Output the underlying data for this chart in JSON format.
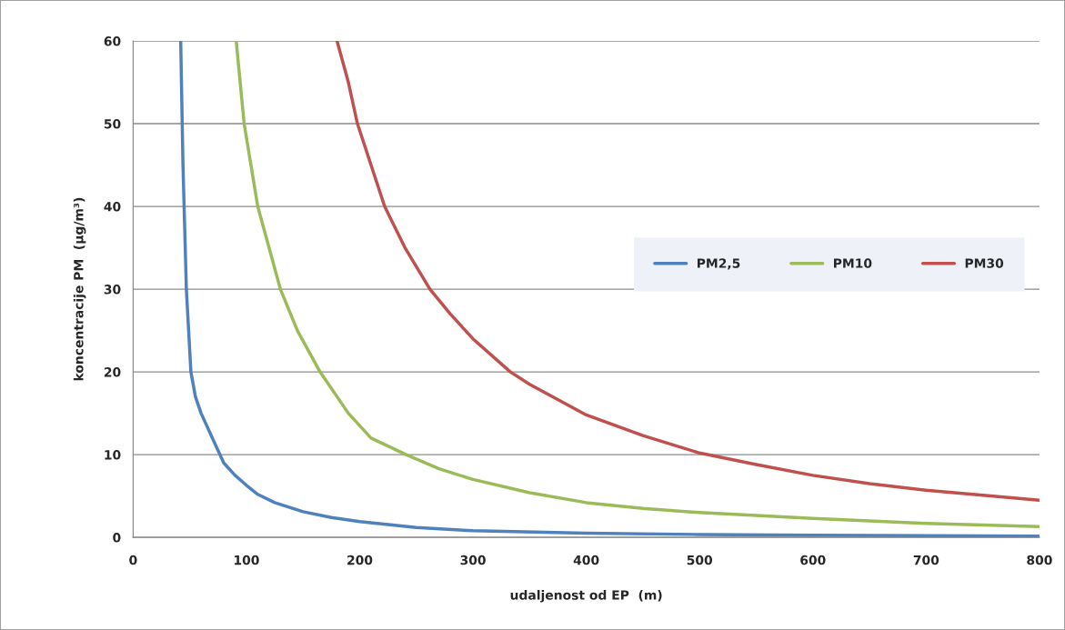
{
  "chart_data": {
    "type": "line",
    "xlabel": "udaljenost od EP  (m)",
    "ylabel": "koncentracije PM  (µg/m³)",
    "xlim": [
      0,
      800
    ],
    "xticks": [
      0,
      100,
      200,
      300,
      400,
      500,
      600,
      700,
      800
    ],
    "ylim": [
      0,
      60
    ],
    "yticks": [
      0,
      10,
      20,
      30,
      40,
      50,
      60
    ],
    "grid": "y",
    "legend": "right",
    "marker": "none",
    "line_style": "solid",
    "series": [
      {
        "name": "PM2,5",
        "color": "#4f81bd",
        "x": [
          42,
          44,
          46,
          47,
          49,
          51,
          55,
          60,
          70,
          80,
          90,
          100,
          110,
          125,
          150,
          175,
          200,
          250,
          300,
          400,
          500,
          600,
          700,
          800
        ],
        "values": [
          60,
          45,
          35,
          30,
          25,
          20,
          17,
          15,
          12,
          9,
          7.5,
          6.3,
          5.2,
          4.2,
          3.1,
          2.4,
          1.9,
          1.2,
          0.8,
          0.5,
          0.35,
          0.25,
          0.2,
          0.15
        ]
      },
      {
        "name": "PM10",
        "color": "#9bbb59",
        "x": [
          91,
          98,
          104,
          110,
          120,
          130,
          145,
          165,
          190,
          210,
          241,
          270,
          300,
          350,
          400,
          450,
          500,
          600,
          700,
          800
        ],
        "values": [
          60,
          50,
          45,
          40,
          35,
          30,
          25,
          20,
          15,
          12,
          10,
          8.3,
          7,
          5.4,
          4.2,
          3.5,
          3,
          2.3,
          1.7,
          1.3
        ]
      },
      {
        "name": "PM30",
        "color": "#c0504d",
        "x": [
          180,
          190,
          198,
          210,
          222,
          240,
          262,
          280,
          300,
          333,
          350,
          400,
          450,
          500,
          550,
          600,
          650,
          700,
          750,
          800
        ],
        "values": [
          60,
          55,
          50,
          45,
          40,
          35,
          30,
          27,
          24,
          20,
          18.5,
          14.8,
          12.3,
          10.2,
          8.8,
          7.5,
          6.5,
          5.7,
          5.1,
          4.5
        ]
      }
    ]
  }
}
